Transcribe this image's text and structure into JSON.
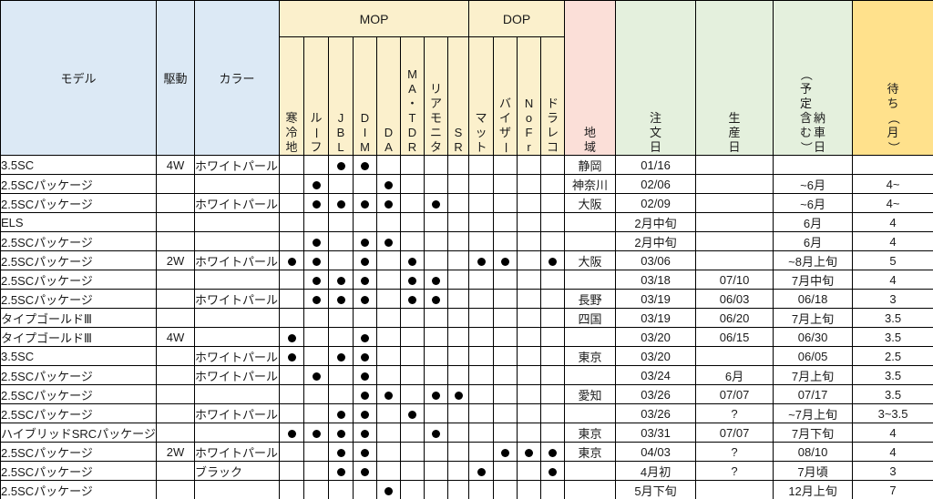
{
  "colors": {
    "header-blue": "#DCE9F5",
    "header-cream": "#FBF0CC",
    "header-pink": "#FBDFD8",
    "header-green": "#E4F0DD",
    "header-gold": "#FFE18C",
    "grid": "#000000",
    "dot": "#000000"
  },
  "table": {
    "headers": {
      "model": "モデル",
      "drive": "駆動",
      "color": "カラー",
      "mop_group": "MOP",
      "dop_group": "DOP",
      "option_cols": [
        "寒冷地",
        "ルーフ",
        "JBL",
        "DIM",
        "DA",
        "MA・TDR",
        "リアモニタ",
        "SR",
        "マット",
        "バイザー",
        "NoFr",
        "ドラレコ"
      ],
      "option_keys": [
        "cold-weather",
        "roof",
        "jbl",
        "dim",
        "da",
        "ma-tdr",
        "rear-monitor",
        "sr",
        "mat",
        "visor",
        "nofr",
        "drive-recorder"
      ],
      "region": "地域",
      "order_date": "注文日",
      "production_date": "生産日",
      "delivery_date": "納車日",
      "delivery_note": "（予定含む）",
      "wait": "待ち（月）"
    },
    "rows": [
      {
        "model": "3.5SC",
        "drive": "4W",
        "color": "ホワイトパール",
        "opts": [
          0,
          0,
          1,
          1,
          0,
          0,
          0,
          0,
          0,
          0,
          0,
          0
        ],
        "region": "静岡",
        "order": "01/16",
        "production": "",
        "delivery": "",
        "wait": ""
      },
      {
        "model": "2.5SCパッケージ",
        "drive": "",
        "color": "",
        "opts": [
          0,
          1,
          0,
          0,
          1,
          0,
          0,
          0,
          0,
          0,
          0,
          0
        ],
        "region": "神奈川",
        "order": "02/06",
        "production": "",
        "delivery": "~6月",
        "wait": "4~"
      },
      {
        "model": "2.5SCパッケージ",
        "drive": "",
        "color": "ホワイトパール",
        "opts": [
          0,
          1,
          1,
          1,
          1,
          0,
          1,
          0,
          0,
          0,
          0,
          0
        ],
        "region": "大阪",
        "order": "02/09",
        "production": "",
        "delivery": "~6月",
        "wait": "4~"
      },
      {
        "model": "ELS",
        "drive": "",
        "color": "",
        "opts": [
          0,
          0,
          0,
          0,
          0,
          0,
          0,
          0,
          0,
          0,
          0,
          0
        ],
        "region": "",
        "order": "2月中旬",
        "production": "",
        "delivery": "6月",
        "wait": "4"
      },
      {
        "model": "2.5SCパッケージ",
        "drive": "",
        "color": "",
        "opts": [
          0,
          1,
          0,
          1,
          1,
          0,
          0,
          0,
          0,
          0,
          0,
          0
        ],
        "region": "",
        "order": "2月中旬",
        "production": "",
        "delivery": "6月",
        "wait": "4"
      },
      {
        "model": "2.5SCパッケージ",
        "drive": "2W",
        "color": "ホワイトパール",
        "opts": [
          1,
          1,
          0,
          1,
          0,
          1,
          0,
          0,
          1,
          1,
          0,
          1
        ],
        "region": "大阪",
        "order": "03/06",
        "production": "",
        "delivery": "~8月上旬",
        "wait": "5"
      },
      {
        "model": "2.5SCパッケージ",
        "drive": "",
        "color": "",
        "opts": [
          0,
          1,
          1,
          1,
          0,
          1,
          1,
          0,
          0,
          0,
          0,
          0
        ],
        "region": "",
        "order": "03/18",
        "production": "07/10",
        "delivery": "7月中旬",
        "wait": "4"
      },
      {
        "model": "2.5SCパッケージ",
        "drive": "",
        "color": "ホワイトパール",
        "opts": [
          0,
          1,
          1,
          1,
          0,
          1,
          1,
          0,
          0,
          0,
          0,
          0
        ],
        "region": "長野",
        "order": "03/19",
        "production": "06/03",
        "delivery": "06/18",
        "wait": "3"
      },
      {
        "model": "タイプゴールドⅢ",
        "drive": "",
        "color": "",
        "opts": [
          0,
          0,
          0,
          0,
          0,
          0,
          0,
          0,
          0,
          0,
          0,
          0
        ],
        "region": "四国",
        "order": "03/19",
        "production": "06/20",
        "delivery": "7月上旬",
        "wait": "3.5"
      },
      {
        "model": "タイプゴールドⅢ",
        "drive": "4W",
        "color": "",
        "opts": [
          1,
          0,
          0,
          1,
          0,
          0,
          0,
          0,
          0,
          0,
          0,
          0
        ],
        "region": "",
        "order": "03/20",
        "production": "06/15",
        "delivery": "06/30",
        "wait": "3.5"
      },
      {
        "model": "3.5SC",
        "drive": "",
        "color": "ホワイトパール",
        "opts": [
          1,
          0,
          1,
          1,
          0,
          0,
          0,
          0,
          0,
          0,
          0,
          0
        ],
        "region": "東京",
        "order": "03/20",
        "production": "",
        "delivery": "06/05",
        "wait": "2.5"
      },
      {
        "model": "2.5SCパッケージ",
        "drive": "",
        "color": "ホワイトパール",
        "opts": [
          0,
          1,
          0,
          1,
          0,
          0,
          0,
          0,
          0,
          0,
          0,
          0
        ],
        "region": "",
        "order": "03/24",
        "production": "6月",
        "delivery": "7月上旬",
        "wait": "3.5"
      },
      {
        "model": "2.5SCパッケージ",
        "drive": "",
        "color": "",
        "opts": [
          0,
          0,
          0,
          1,
          1,
          0,
          1,
          1,
          0,
          0,
          0,
          0
        ],
        "region": "愛知",
        "order": "03/26",
        "production": "07/07",
        "delivery": "07/17",
        "wait": "3.5"
      },
      {
        "model": "2.5SCパッケージ",
        "drive": "",
        "color": "ホワイトパール",
        "opts": [
          0,
          0,
          1,
          1,
          0,
          1,
          0,
          0,
          0,
          0,
          0,
          0
        ],
        "region": "",
        "order": "03/26",
        "production": "?",
        "delivery": "~7月上旬",
        "wait": "3~3.5"
      },
      {
        "model": "ハイブリッドSRCパッケージ",
        "drive": "",
        "color": "",
        "opts": [
          1,
          1,
          1,
          1,
          0,
          0,
          1,
          0,
          0,
          0,
          0,
          0
        ],
        "region": "東京",
        "order": "03/31",
        "production": "07/07",
        "delivery": "7月下旬",
        "wait": "4"
      },
      {
        "model": "2.5SCパッケージ",
        "drive": "2W",
        "color": "ホワイトパール",
        "opts": [
          0,
          0,
          1,
          1,
          0,
          0,
          0,
          0,
          0,
          1,
          1,
          1
        ],
        "region": "東京",
        "order": "04/03",
        "production": "?",
        "delivery": "08/10",
        "wait": "4"
      },
      {
        "model": "2.5SCパッケージ",
        "drive": "",
        "color": "ブラック",
        "opts": [
          0,
          0,
          1,
          1,
          0,
          0,
          0,
          0,
          1,
          0,
          0,
          1
        ],
        "region": "",
        "order": "4月初",
        "production": "?",
        "delivery": "7月頃",
        "wait": "3"
      },
      {
        "model": "2.5SCパッケージ",
        "drive": "",
        "color": "",
        "opts": [
          0,
          0,
          0,
          0,
          1,
          0,
          0,
          0,
          0,
          0,
          0,
          0
        ],
        "region": "",
        "order": "5月下旬",
        "production": "",
        "delivery": "12月上旬",
        "wait": "7"
      }
    ]
  }
}
